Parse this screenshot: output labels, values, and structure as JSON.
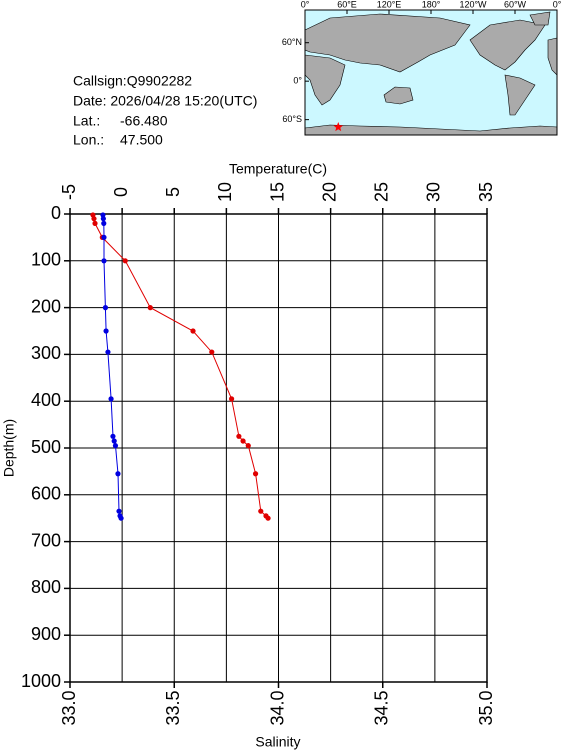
{
  "chart_data": {
    "type": "profile",
    "info": {
      "callsign": "Callsign:Q9902282",
      "date": "Date:  2026/04/28 15:20(UTC)",
      "lat_label": "Lat.:",
      "lat": {
        "value": -66.48,
        "label": "-66.480"
      },
      "lon_label": "Lon.:",
      "lon": {
        "value": 47.5,
        "label": "47.500"
      }
    },
    "map": {
      "lonlim": [
        0,
        360
      ],
      "latlim": [
        -72,
        80
      ],
      "lonticks": [
        {
          "value": 0,
          "label": "0°"
        },
        {
          "value": 60,
          "label": "60°E"
        },
        {
          "value": 120,
          "label": "120°E"
        },
        {
          "value": 180,
          "label": "180°"
        },
        {
          "value": 240,
          "label": "120°W"
        },
        {
          "value": 300,
          "label": "60°W"
        },
        {
          "value": 360,
          "label": "0°"
        }
      ],
      "latticks": [
        {
          "value": 60,
          "label": "60°N"
        },
        {
          "value": 0,
          "label": "0°"
        },
        {
          "value": -60,
          "label": "60°S"
        }
      ],
      "marker_color": "#ff0000"
    },
    "ylabel": "Depth(m)",
    "ylim": [
      0,
      1000
    ],
    "yticks": [
      0,
      100,
      200,
      300,
      400,
      500,
      600,
      700,
      800,
      900,
      1000
    ],
    "x_top": {
      "label": "Temperature(C)",
      "lim": [
        -5,
        35
      ],
      "ticks": [
        -5,
        0,
        5,
        10,
        15,
        20,
        25,
        30,
        35
      ]
    },
    "x_bottom": {
      "label": "Salinity",
      "lim": [
        33,
        35
      ],
      "ticks": [
        {
          "value": 33,
          "label": "33.0"
        },
        {
          "value": 33.5,
          "label": "33.5"
        },
        {
          "value": 34,
          "label": "34.0"
        },
        {
          "value": 34.5,
          "label": "34.5"
        },
        {
          "value": 35,
          "label": "35.0"
        }
      ]
    },
    "grid": true,
    "depth": [
      2,
      10,
      20,
      50,
      100,
      200,
      250,
      295,
      395,
      475,
      485,
      495,
      555,
      635,
      645,
      650
    ],
    "series": [
      {
        "axis": "x_top",
        "color": "#e00000",
        "values": [
          -2.8,
          -2.7,
          -2.6,
          -1.9,
          0.3,
          2.7,
          6.8,
          8.6,
          10.5,
          11.2,
          11.6,
          12.1,
          12.8,
          13.3,
          13.8,
          14.0
        ]
      },
      {
        "axis": "x_bottom",
        "color": "#0000e0",
        "values": [
          33.158,
          33.16,
          33.162,
          33.163,
          33.163,
          33.17,
          33.173,
          33.182,
          33.197,
          33.206,
          33.212,
          33.218,
          33.23,
          33.235,
          33.24,
          33.245
        ]
      }
    ]
  }
}
